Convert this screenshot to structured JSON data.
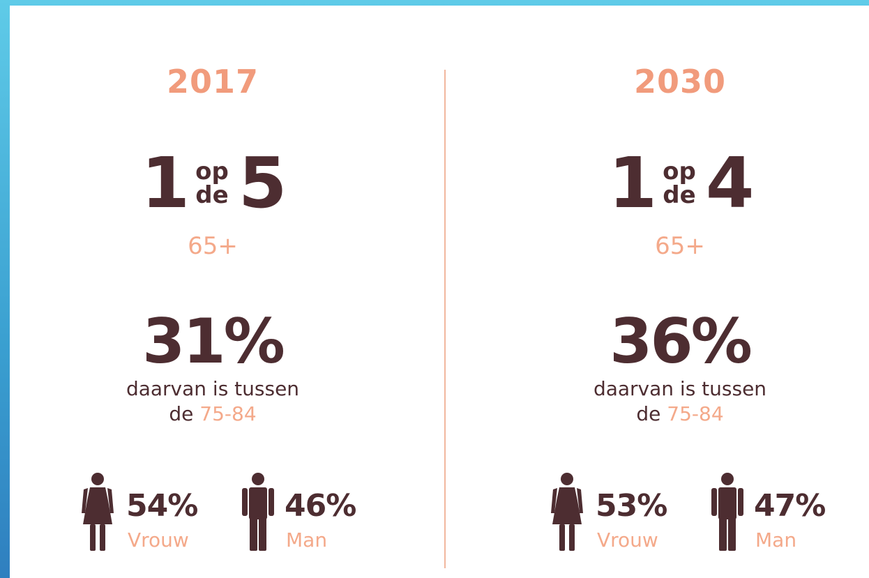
{
  "columns": [
    {
      "year": "2017",
      "ratio_left": "1",
      "ratio_top": "op",
      "ratio_bottom": "de",
      "ratio_right": "5",
      "age": "65+",
      "percentage": "31%",
      "description": "daarvan is tussen",
      "description_prefix": "de",
      "age_range": "75-84",
      "women": {
        "percentage": "54%",
        "label": "Vrouw"
      },
      "men": {
        "percentage": "46%",
        "label": "Man"
      }
    },
    {
      "year": "2030",
      "ratio_left": "1",
      "ratio_top": "op",
      "ratio_bottom": "de",
      "ratio_right": "4",
      "age": "65+",
      "percentage": "36%",
      "description": "daarvan is tussen",
      "description_prefix": "de",
      "age_range": "75-84",
      "women": {
        "percentage": "53%",
        "label": "Vrouw"
      },
      "men": {
        "percentage": "47%",
        "label": "Man"
      }
    }
  ]
}
